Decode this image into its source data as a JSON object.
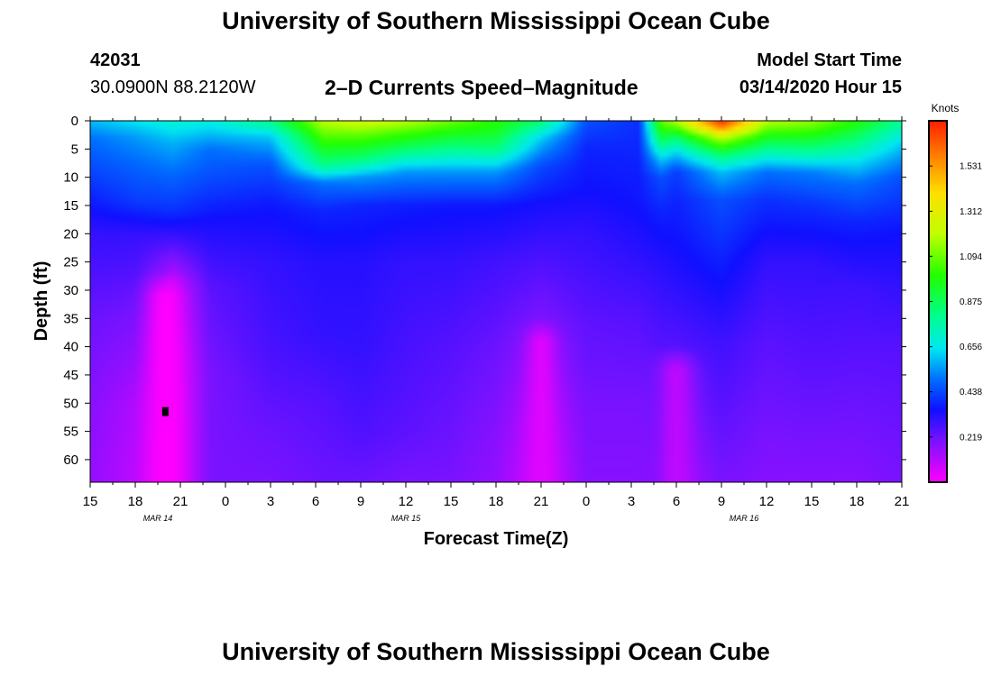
{
  "page": {
    "title_top": "University of Southern Mississippi Ocean Cube",
    "title_bottom": "University of Southern Mississippi Ocean Cube"
  },
  "header": {
    "station_id": "42031",
    "location": "30.0900N 88.2120W",
    "plot_title": "2–D Currents Speed–Magnitude",
    "model_start_label": "Model Start Time",
    "model_start_value": "03/14/2020 Hour 15"
  },
  "chart_data": {
    "type": "heatmap",
    "title": "2–D Currents Speed–Magnitude",
    "xlabel": "Forecast Time(Z)",
    "ylabel": "Depth (ft)",
    "x_range_hours": [
      0,
      54
    ],
    "y_range_ft": [
      0,
      64
    ],
    "x_ticks": [
      {
        "label": "15",
        "h": 0
      },
      {
        "label": "18",
        "h": 3
      },
      {
        "label": "21",
        "h": 6
      },
      {
        "label": "0",
        "h": 9
      },
      {
        "label": "3",
        "h": 12
      },
      {
        "label": "6",
        "h": 15
      },
      {
        "label": "9",
        "h": 18
      },
      {
        "label": "12",
        "h": 21
      },
      {
        "label": "15",
        "h": 24
      },
      {
        "label": "18",
        "h": 27
      },
      {
        "label": "21",
        "h": 30
      },
      {
        "label": "0",
        "h": 33
      },
      {
        "label": "3",
        "h": 36
      },
      {
        "label": "6",
        "h": 39
      },
      {
        "label": "9",
        "h": 42
      },
      {
        "label": "12",
        "h": 45
      },
      {
        "label": "15",
        "h": 48
      },
      {
        "label": "18",
        "h": 51
      },
      {
        "label": "21",
        "h": 54
      }
    ],
    "date_labels": [
      {
        "label": "MAR 14",
        "h": 4.5
      },
      {
        "label": "MAR 15",
        "h": 21
      },
      {
        "label": "MAR 16",
        "h": 43.5
      }
    ],
    "y_ticks": [
      0,
      5,
      10,
      15,
      20,
      25,
      30,
      35,
      40,
      45,
      50,
      55,
      60
    ],
    "colorbar": {
      "unit": "Knots",
      "min": 0,
      "max": 1.75,
      "ticks": [
        "0.219",
        "0.438",
        "0.656",
        "0.875",
        "1.094",
        "1.312",
        "1.531"
      ],
      "stops": [
        {
          "v": 0.0,
          "color": "#ff00ff"
        },
        {
          "v": 0.2,
          "color": "#7a12ff"
        },
        {
          "v": 0.35,
          "color": "#1010ff"
        },
        {
          "v": 0.5,
          "color": "#0070ff"
        },
        {
          "v": 0.65,
          "color": "#00e8f0"
        },
        {
          "v": 0.8,
          "color": "#00ff90"
        },
        {
          "v": 1.0,
          "color": "#20ff00"
        },
        {
          "v": 1.2,
          "color": "#c0ff00"
        },
        {
          "v": 1.4,
          "color": "#ffe000"
        },
        {
          "v": 1.55,
          "color": "#ff9000"
        },
        {
          "v": 1.75,
          "color": "#ff2000"
        }
      ]
    },
    "profiles": [
      {
        "h": 0,
        "depths": [
          0,
          3,
          10,
          20,
          35,
          50,
          64
        ],
        "speeds": [
          0.6,
          0.5,
          0.42,
          0.3,
          0.22,
          0.18,
          0.16
        ]
      },
      {
        "h": 3,
        "depths": [
          0,
          3,
          8,
          14,
          20,
          35,
          50,
          64
        ],
        "speeds": [
          0.65,
          0.55,
          0.48,
          0.42,
          0.3,
          0.2,
          0.12,
          0.1
        ]
      },
      {
        "h": 5.5,
        "depths": [
          0,
          4,
          10,
          16,
          20,
          28,
          40,
          55,
          64
        ],
        "speeds": [
          0.7,
          0.58,
          0.48,
          0.4,
          0.3,
          0.1,
          0.04,
          0.02,
          0.02
        ]
      },
      {
        "h": 8,
        "depths": [
          0,
          5,
          12,
          18,
          30,
          45,
          64
        ],
        "speeds": [
          0.68,
          0.5,
          0.42,
          0.34,
          0.24,
          0.2,
          0.2
        ]
      },
      {
        "h": 12,
        "depths": [
          0,
          3,
          8,
          15,
          25,
          40,
          55,
          64
        ],
        "speeds": [
          0.82,
          0.6,
          0.45,
          0.36,
          0.3,
          0.27,
          0.22,
          0.2
        ]
      },
      {
        "h": 15.5,
        "depths": [
          0,
          4,
          8,
          11,
          16,
          25,
          38,
          50,
          64
        ],
        "speeds": [
          1.2,
          1.0,
          0.8,
          0.5,
          0.38,
          0.32,
          0.3,
          0.25,
          0.22
        ]
      },
      {
        "h": 18,
        "depths": [
          0,
          3,
          7,
          10,
          15,
          25,
          40,
          55,
          64
        ],
        "speeds": [
          1.25,
          1.05,
          0.82,
          0.55,
          0.38,
          0.32,
          0.3,
          0.26,
          0.22
        ]
      },
      {
        "h": 21,
        "depths": [
          0,
          2,
          5,
          9,
          15,
          25,
          40,
          55,
          64
        ],
        "speeds": [
          1.2,
          1.05,
          0.85,
          0.55,
          0.37,
          0.3,
          0.27,
          0.24,
          0.2
        ]
      },
      {
        "h": 24,
        "depths": [
          0,
          2,
          5,
          9,
          15,
          25,
          40,
          55,
          64
        ],
        "speeds": [
          1.1,
          0.98,
          0.8,
          0.55,
          0.36,
          0.3,
          0.25,
          0.22,
          0.2
        ]
      },
      {
        "h": 27,
        "depths": [
          0,
          2,
          5,
          9,
          15,
          25,
          40,
          55,
          64
        ],
        "speeds": [
          1.0,
          0.95,
          0.82,
          0.55,
          0.36,
          0.28,
          0.22,
          0.18,
          0.16
        ]
      },
      {
        "h": 30,
        "depths": [
          0,
          3,
          8,
          15,
          25,
          40,
          55,
          64
        ],
        "speeds": [
          0.85,
          0.62,
          0.44,
          0.34,
          0.26,
          0.16,
          0.08,
          0.06
        ]
      },
      {
        "h": 33,
        "depths": [
          0,
          5,
          12,
          20,
          35,
          50,
          64
        ],
        "speeds": [
          0.45,
          0.38,
          0.35,
          0.3,
          0.24,
          0.2,
          0.18
        ]
      },
      {
        "h": 36.5,
        "depths": [
          0,
          6,
          14,
          22,
          35,
          50,
          64
        ],
        "speeds": [
          0.4,
          0.38,
          0.36,
          0.32,
          0.25,
          0.2,
          0.18
        ]
      },
      {
        "h": 38,
        "depths": [
          0,
          3,
          7,
          10,
          16,
          25,
          40,
          64
        ],
        "speeds": [
          1.1,
          0.9,
          0.6,
          0.45,
          0.38,
          0.32,
          0.25,
          0.2
        ]
      },
      {
        "h": 39,
        "depths": [
          0,
          3,
          6,
          9,
          14,
          24,
          40,
          64
        ],
        "speeds": [
          1.2,
          0.85,
          0.6,
          0.42,
          0.38,
          0.34,
          0.25,
          0.14
        ]
      },
      {
        "h": 42,
        "depths": [
          0,
          1,
          3,
          6,
          9,
          14,
          24,
          40,
          64
        ],
        "speeds": [
          1.75,
          1.6,
          1.2,
          0.85,
          0.6,
          0.45,
          0.38,
          0.28,
          0.2
        ]
      },
      {
        "h": 45,
        "depths": [
          0,
          3,
          6,
          9,
          14,
          25,
          40,
          64
        ],
        "speeds": [
          1.2,
          0.95,
          0.72,
          0.5,
          0.4,
          0.3,
          0.24,
          0.18
        ]
      },
      {
        "h": 48,
        "depths": [
          0,
          3,
          6,
          9,
          15,
          25,
          45,
          64
        ],
        "speeds": [
          1.15,
          0.95,
          0.75,
          0.52,
          0.4,
          0.3,
          0.24,
          0.18
        ]
      },
      {
        "h": 51,
        "depths": [
          0,
          3,
          7,
          11,
          18,
          30,
          50,
          64
        ],
        "speeds": [
          1.0,
          0.85,
          0.65,
          0.5,
          0.38,
          0.28,
          0.22,
          0.18
        ]
      },
      {
        "h": 54,
        "depths": [
          0,
          4,
          10,
          20,
          40,
          64
        ],
        "speeds": [
          0.8,
          0.62,
          0.45,
          0.35,
          0.25,
          0.2
        ]
      }
    ],
    "bands": [
      {
        "h": 5,
        "width_h": 1.2,
        "depth_from": 27,
        "speed": 0.0
      },
      {
        "h": 30,
        "width_h": 1.0,
        "depth_from": 35,
        "speed": 0.05
      },
      {
        "h": 39,
        "width_h": 1.2,
        "depth_from": 40,
        "speed": 0.1
      }
    ],
    "markers": [
      {
        "h": 5,
        "depth": 51.5
      }
    ]
  }
}
